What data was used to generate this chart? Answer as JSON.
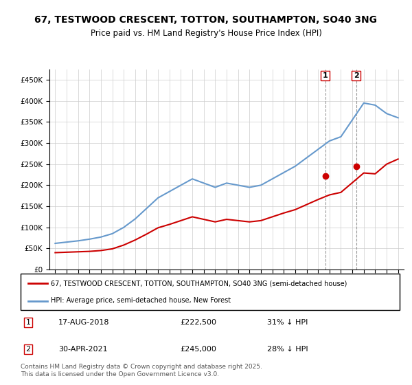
{
  "title": "67, TESTWOOD CRESCENT, TOTTON, SOUTHAMPTON, SO40 3NG",
  "subtitle": "Price paid vs. HM Land Registry's House Price Index (HPI)",
  "ylabel_prefix": "£",
  "background_color": "#ffffff",
  "plot_bg_color": "#ffffff",
  "grid_color": "#cccccc",
  "red_color": "#cc0000",
  "blue_color": "#6699cc",
  "marker1_date": "2018-08",
  "marker2_date": "2021-04",
  "marker1_label": "17-AUG-2018",
  "marker1_price": "£222,500",
  "marker1_hpi": "31% ↓ HPI",
  "marker2_label": "30-APR-2021",
  "marker2_price": "£245,000",
  "marker2_hpi": "28% ↓ HPI",
  "legend1": "67, TESTWOOD CRESCENT, TOTTON, SOUTHAMPTON, SO40 3NG (semi-detached house)",
  "legend2": "HPI: Average price, semi-detached house, New Forest",
  "footer": "Contains HM Land Registry data © Crown copyright and database right 2025.\nThis data is licensed under the Open Government Licence v3.0.",
  "ylim": [
    0,
    475000
  ],
  "yticks": [
    0,
    50000,
    100000,
    150000,
    200000,
    250000,
    300000,
    350000,
    400000,
    450000
  ],
  "hpi_years": [
    1995,
    1996,
    1997,
    1998,
    1999,
    2000,
    2001,
    2002,
    2003,
    2004,
    2005,
    2006,
    2007,
    2008,
    2009,
    2010,
    2011,
    2012,
    2013,
    2014,
    2015,
    2016,
    2017,
    2018,
    2019,
    2020,
    2021,
    2022,
    2023,
    2024,
    2025
  ],
  "hpi_values": [
    62000,
    65000,
    68000,
    72000,
    77000,
    85000,
    100000,
    120000,
    145000,
    170000,
    185000,
    200000,
    215000,
    205000,
    195000,
    205000,
    200000,
    195000,
    200000,
    215000,
    230000,
    245000,
    265000,
    285000,
    305000,
    315000,
    355000,
    395000,
    390000,
    370000,
    360000
  ],
  "red_years": [
    1995,
    1996,
    1997,
    1998,
    1999,
    2000,
    2001,
    2002,
    2003,
    2004,
    2005,
    2006,
    2007,
    2008,
    2009,
    2010,
    2011,
    2012,
    2013,
    2014,
    2015,
    2016,
    2017,
    2018,
    2019,
    2020,
    2021,
    2022,
    2023,
    2024,
    2025
  ],
  "red_values": [
    40000,
    41000,
    42000,
    43000,
    45000,
    49000,
    58000,
    70000,
    84000,
    99000,
    107000,
    116000,
    125000,
    119000,
    113000,
    119000,
    116000,
    113000,
    116000,
    125000,
    134000,
    142000,
    154000,
    166000,
    177000,
    183000,
    206000,
    229000,
    227000,
    250000,
    262000
  ],
  "purchase1_year": 2018.625,
  "purchase1_value": 222500,
  "purchase2_year": 2021.33,
  "purchase2_value": 245000
}
